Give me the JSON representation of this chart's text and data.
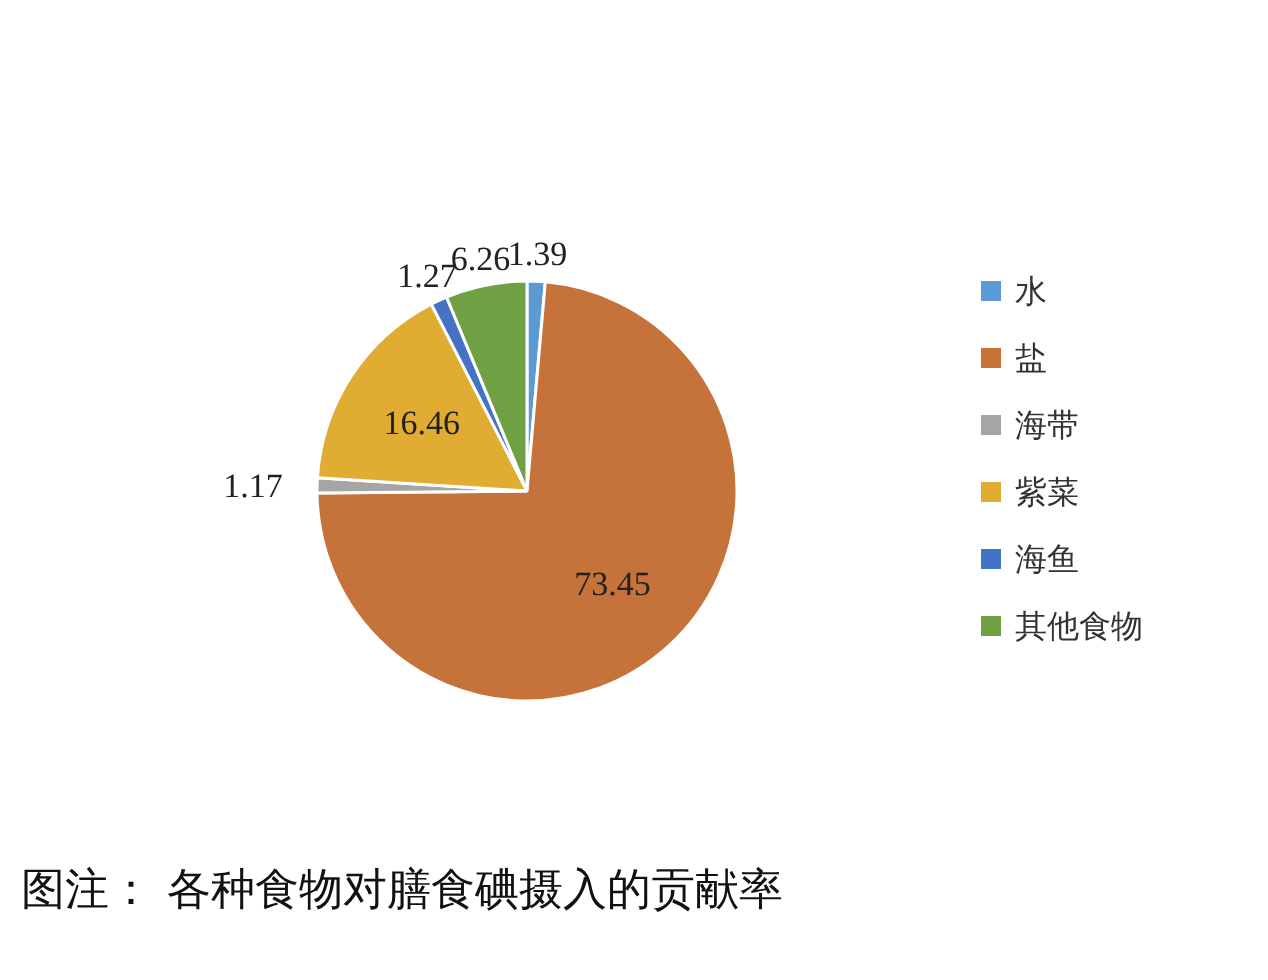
{
  "chart_data": {
    "type": "pie",
    "categories": [
      "水",
      "盐",
      "海带",
      "紫菜",
      "海鱼",
      "其他食物"
    ],
    "values": [
      1.39,
      73.45,
      1.17,
      16.46,
      1.27,
      6.26
    ],
    "colors": [
      "#5b9bd5",
      "#c5733a",
      "#a5a5a5",
      "#e0ac32",
      "#4472c4",
      "#70a044"
    ],
    "data_labels": true,
    "legend": "right",
    "annotations": [
      "图注：     各种食物对膳食碘摄入的贡献率"
    ]
  }
}
